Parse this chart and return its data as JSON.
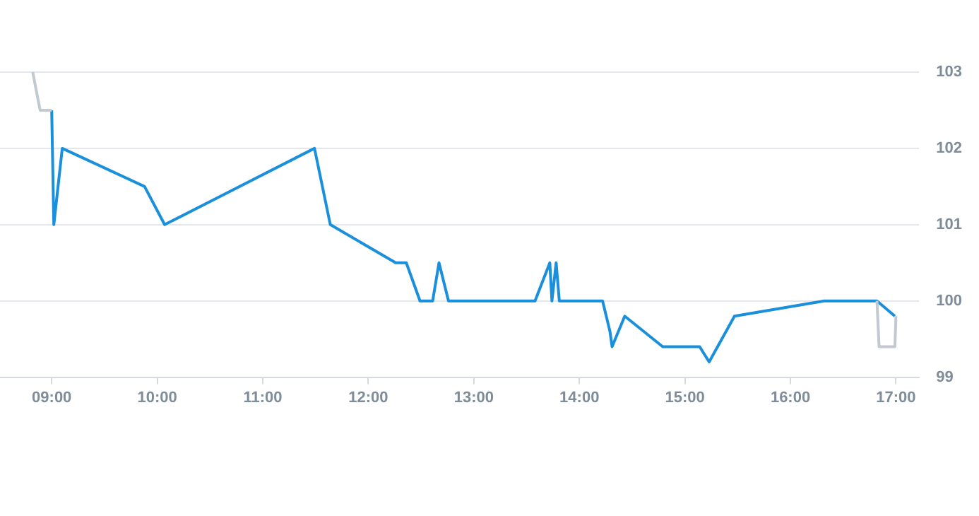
{
  "chart_data": {
    "type": "line",
    "xlim": [
      8.51,
      17.22
    ],
    "ylim": [
      99,
      103
    ],
    "xticks": [
      {
        "value": 9,
        "label": "09:00"
      },
      {
        "value": 10,
        "label": "10:00"
      },
      {
        "value": 11,
        "label": "11:00"
      },
      {
        "value": 12,
        "label": "12:00"
      },
      {
        "value": 13,
        "label": "13:00"
      },
      {
        "value": 14,
        "label": "14:00"
      },
      {
        "value": 15,
        "label": "15:00"
      },
      {
        "value": 16,
        "label": "16:00"
      },
      {
        "value": 17,
        "label": "17:00"
      }
    ],
    "yticks": [
      99,
      100,
      101,
      102,
      103
    ],
    "grid": "y",
    "legend": false,
    "marker": "none",
    "line_style": "solid",
    "series": [
      {
        "color": "#c2c9d1",
        "x": [
          8.82,
          8.89,
          9.0
        ],
        "values": [
          103,
          102.5,
          102.5
        ]
      },
      {
        "color": "#c2c9d1",
        "x": [
          16.82,
          16.84,
          16.99,
          17.0
        ],
        "values": [
          100,
          99.4,
          99.4,
          99.8
        ]
      },
      {
        "color": "#1a8fdc",
        "x": [
          9.0,
          9.02,
          9.1,
          9.88,
          10.07,
          11.49,
          11.64,
          12.26,
          12.36,
          12.49,
          12.61,
          12.67,
          12.76,
          13.58,
          13.72,
          13.74,
          13.78,
          13.81,
          14.22,
          14.29,
          14.31,
          14.43,
          14.79,
          15.14,
          15.23,
          15.47,
          16.32,
          16.82,
          16.99
        ],
        "values": [
          102.5,
          101,
          102,
          101.5,
          101,
          102,
          101,
          100.5,
          100.5,
          100,
          100,
          100.5,
          100,
          100,
          100.5,
          100,
          100.5,
          100,
          100,
          99.6,
          99.4,
          99.8,
          99.4,
          99.4,
          99.2,
          99.8,
          100,
          100,
          99.8
        ]
      }
    ]
  }
}
